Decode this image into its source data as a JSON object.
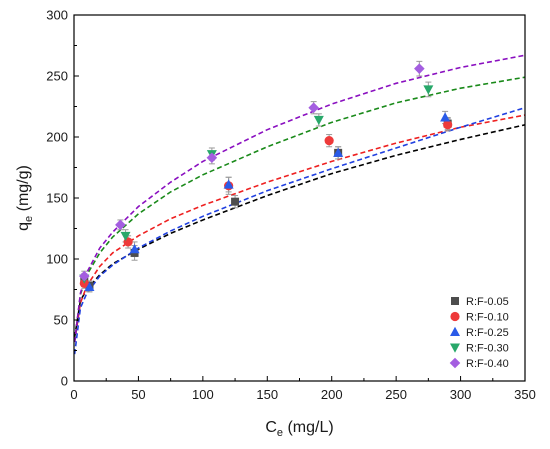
{
  "chart_data": {
    "type": "scatter",
    "title": "",
    "xlabel": "C",
    "xlabel_sub": "e",
    "xlabel_unit": " (mg/L)",
    "ylabel": "q",
    "ylabel_sub": "e",
    "ylabel_unit": " (mg/g)",
    "xlim": [
      0,
      350
    ],
    "ylim": [
      0,
      300
    ],
    "xticks": [
      0,
      50,
      100,
      150,
      200,
      250,
      300,
      350
    ],
    "yticks": [
      0,
      50,
      100,
      150,
      200,
      250,
      300
    ],
    "grid": false,
    "legend_position": "bottom-right",
    "series": [
      {
        "name": "R:F-0.05",
        "color": "#4d4d4d",
        "fit_color": "#000000",
        "marker": "square",
        "points": [
          [
            8,
            82,
            4
          ],
          [
            12,
            78,
            4
          ],
          [
            47,
            105,
            6
          ],
          [
            125,
            147,
            5
          ],
          [
            205,
            187,
            5
          ],
          [
            290,
            211,
            5
          ]
        ],
        "fit_curve": [
          [
            0.5,
            36
          ],
          [
            5,
            66
          ],
          [
            10,
            75
          ],
          [
            20,
            87
          ],
          [
            30,
            96
          ],
          [
            50,
            108
          ],
          [
            75,
            121
          ],
          [
            100,
            132
          ],
          [
            150,
            152
          ],
          [
            200,
            170
          ],
          [
            250,
            185
          ],
          [
            300,
            198
          ],
          [
            350,
            210
          ]
        ]
      },
      {
        "name": "R:F-0.10",
        "color": "#ee3a3a",
        "fit_color": "#ee2020",
        "marker": "circle",
        "points": [
          [
            8,
            80,
            4
          ],
          [
            42,
            114,
            5
          ],
          [
            120,
            160,
            7
          ],
          [
            198,
            197,
            5
          ],
          [
            290,
            210,
            5
          ]
        ],
        "fit_curve": [
          [
            0.5,
            32
          ],
          [
            5,
            64
          ],
          [
            10,
            78
          ],
          [
            20,
            94
          ],
          [
            30,
            105
          ],
          [
            50,
            119
          ],
          [
            75,
            133
          ],
          [
            100,
            144
          ],
          [
            150,
            163
          ],
          [
            200,
            180
          ],
          [
            250,
            195
          ],
          [
            300,
            208
          ],
          [
            350,
            218
          ]
        ]
      },
      {
        "name": "R:F-0.25",
        "color": "#2a5be8",
        "fit_color": "#2040e0",
        "marker": "triangle-up",
        "points": [
          [
            12,
            77,
            4
          ],
          [
            47,
            108,
            6
          ],
          [
            120,
            161,
            6
          ],
          [
            205,
            187,
            5
          ],
          [
            288,
            216,
            5
          ]
        ],
        "fit_curve": [
          [
            0.5,
            22
          ],
          [
            5,
            60
          ],
          [
            10,
            72
          ],
          [
            20,
            86
          ],
          [
            30,
            95
          ],
          [
            50,
            109
          ],
          [
            75,
            123
          ],
          [
            100,
            135
          ],
          [
            150,
            156
          ],
          [
            200,
            174
          ],
          [
            250,
            191
          ],
          [
            300,
            208
          ],
          [
            350,
            224
          ]
        ]
      },
      {
        "name": "R:F-0.30",
        "color": "#28a86a",
        "fit_color": "#1a8a1a",
        "marker": "triangle-down",
        "points": [
          [
            8,
            84,
            4
          ],
          [
            40,
            119,
            5
          ],
          [
            107,
            186,
            5
          ],
          [
            190,
            214,
            5
          ],
          [
            275,
            239,
            6
          ]
        ],
        "fit_curve": [
          [
            0.5,
            32
          ],
          [
            5,
            71
          ],
          [
            10,
            87
          ],
          [
            20,
            105
          ],
          [
            30,
            118
          ],
          [
            50,
            137
          ],
          [
            75,
            155
          ],
          [
            100,
            169
          ],
          [
            150,
            192
          ],
          [
            200,
            212
          ],
          [
            250,
            228
          ],
          [
            300,
            240
          ],
          [
            350,
            249
          ]
        ]
      },
      {
        "name": "R:F-0.40",
        "color": "#a45ee0",
        "fit_color": "#8a10c0",
        "marker": "diamond",
        "points": [
          [
            8,
            86,
            4
          ],
          [
            36,
            128,
            4
          ],
          [
            107,
            183,
            5
          ],
          [
            186,
            224,
            5
          ],
          [
            268,
            256,
            6
          ]
        ],
        "fit_curve": [
          [
            0.5,
            32
          ],
          [
            5,
            72
          ],
          [
            10,
            89
          ],
          [
            20,
            109
          ],
          [
            30,
            122
          ],
          [
            50,
            143
          ],
          [
            75,
            163
          ],
          [
            100,
            180
          ],
          [
            150,
            206
          ],
          [
            200,
            227
          ],
          [
            250,
            244
          ],
          [
            300,
            257
          ],
          [
            350,
            267
          ]
        ]
      }
    ]
  }
}
